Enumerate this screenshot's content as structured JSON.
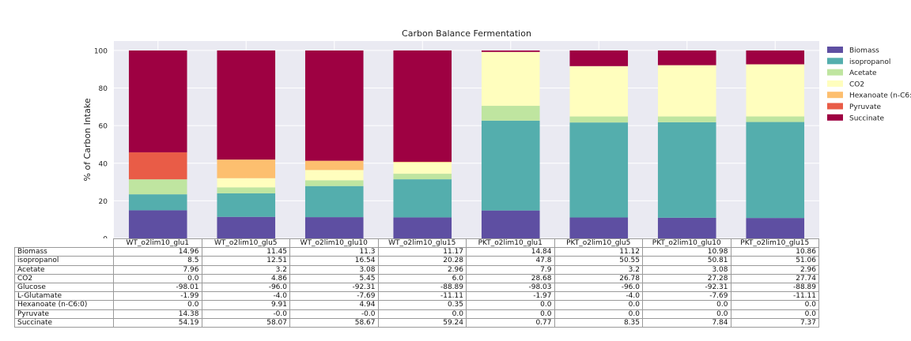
{
  "chart_data": {
    "type": "bar",
    "stacked": true,
    "title": "Carbon Balance Fermentation",
    "xlabel": "",
    "ylabel": "% of Carbon Intake",
    "ylim": [
      0,
      105
    ],
    "yticks": [
      0,
      20,
      40,
      60,
      80,
      100
    ],
    "grid": true,
    "legend_position": "right",
    "categories": [
      "WT_o2lim10_glu1",
      "WT_o2lim10_glu5",
      "WT_o2lim10_glu10",
      "WT_o2lim10_glu15",
      "PKT_o2lim10_glu1",
      "PKT_o2lim10_glu5",
      "PKT_o2lim10_glu10",
      "PKT_o2lim10_glu15"
    ],
    "series": [
      {
        "name": "Biomass",
        "color": "#5e4fa2",
        "values": [
          14.96,
          11.45,
          11.3,
          11.17,
          14.84,
          11.12,
          10.98,
          10.86
        ]
      },
      {
        "name": "isopropanol",
        "color": "#54aead",
        "values": [
          8.5,
          12.51,
          16.54,
          20.28,
          47.8,
          50.55,
          50.81,
          51.06
        ]
      },
      {
        "name": "Acetate",
        "color": "#bfe5a0",
        "values": [
          7.96,
          3.2,
          3.08,
          2.96,
          7.9,
          3.2,
          3.08,
          2.96
        ]
      },
      {
        "name": "CO2",
        "color": "#fffebe",
        "values": [
          0.0,
          4.86,
          5.45,
          6.0,
          28.68,
          26.78,
          27.28,
          27.74
        ]
      },
      {
        "name": "Hexanoate (n-C6:0)",
        "legend_label": "Hexanoate (n-C6:",
        "color": "#fdbf6f",
        "values": [
          0.0,
          9.91,
          4.94,
          0.35,
          0.0,
          0.0,
          0.0,
          0.0
        ]
      },
      {
        "name": "Pyruvate",
        "color": "#e95c47",
        "values": [
          14.38,
          -0.0,
          -0.0,
          0.0,
          0.0,
          0.0,
          0.0,
          0.0
        ]
      },
      {
        "name": "Succinate",
        "color": "#9e0142",
        "values": [
          54.19,
          58.07,
          58.67,
          59.24,
          0.77,
          8.35,
          7.84,
          7.37
        ]
      }
    ],
    "table": {
      "rows": [
        {
          "label": "Biomass",
          "values": [
            "14.96",
            "11.45",
            "11.3",
            "11.17",
            "14.84",
            "11.12",
            "10.98",
            "10.86"
          ]
        },
        {
          "label": "isopropanol",
          "values": [
            "8.5",
            "12.51",
            "16.54",
            "20.28",
            "47.8",
            "50.55",
            "50.81",
            "51.06"
          ]
        },
        {
          "label": "Acetate",
          "values": [
            "7.96",
            "3.2",
            "3.08",
            "2.96",
            "7.9",
            "3.2",
            "3.08",
            "2.96"
          ]
        },
        {
          "label": "CO2",
          "values": [
            "0.0",
            "4.86",
            "5.45",
            "6.0",
            "28.68",
            "26.78",
            "27.28",
            "27.74"
          ]
        },
        {
          "label": "Glucose",
          "values": [
            "-98.01",
            "-96.0",
            "-92.31",
            "-88.89",
            "-98.03",
            "-96.0",
            "-92.31",
            "-88.89"
          ]
        },
        {
          "label": "L-Glutamate",
          "values": [
            "-1.99",
            "-4.0",
            "-7.69",
            "-11.11",
            "-1.97",
            "-4.0",
            "-7.69",
            "-11.11"
          ]
        },
        {
          "label": "Hexanoate (n-C6:0)",
          "values": [
            "0.0",
            "9.91",
            "4.94",
            "0.35",
            "0.0",
            "0.0",
            "0.0",
            "0.0"
          ]
        },
        {
          "label": "Pyruvate",
          "values": [
            "14.38",
            "-0.0",
            "-0.0",
            "0.0",
            "0.0",
            "0.0",
            "0.0",
            "0.0"
          ]
        },
        {
          "label": "Succinate",
          "values": [
            "54.19",
            "58.07",
            "58.67",
            "59.24",
            "0.77",
            "8.35",
            "7.84",
            "7.37"
          ]
        }
      ]
    }
  }
}
